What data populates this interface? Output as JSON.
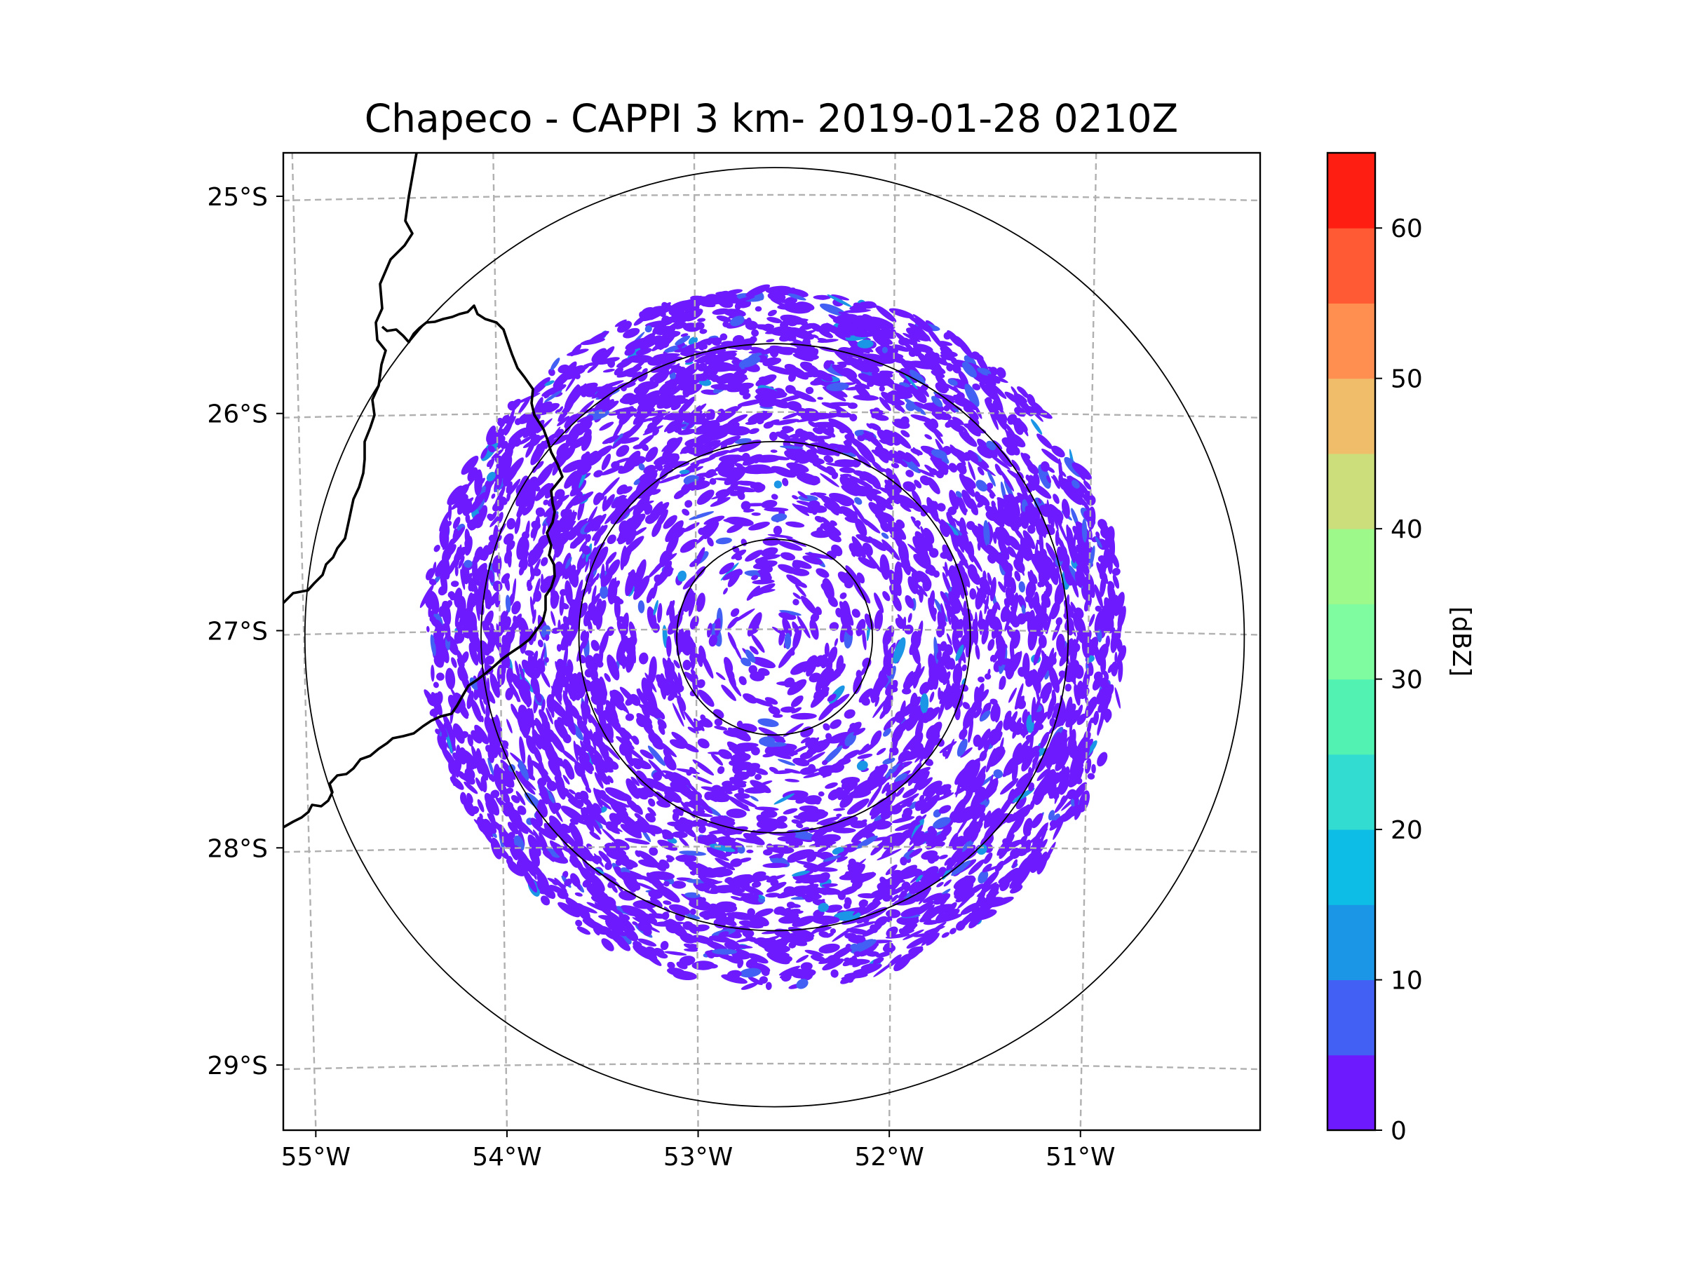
{
  "chart_data": {
    "type": "heatmap",
    "title": "Chapeco - CAPPI 3 km- 2019-01-28 0210Z",
    "projection": "map (lon/lat)",
    "xlim": [
      -55.17,
      -50.06
    ],
    "ylim": [
      -29.3,
      -24.8
    ],
    "xticks": [
      -55,
      -54,
      -53,
      -52,
      -51
    ],
    "xtick_labels": [
      "55°W",
      "54°W",
      "53°W",
      "52°W",
      "51°W"
    ],
    "yticks": [
      -25,
      -26,
      -27,
      -28,
      -29
    ],
    "ytick_labels": [
      "25°S",
      "26°S",
      "27°S",
      "28°S",
      "29°S"
    ],
    "grid": true,
    "radar": {
      "name": "Chapeco",
      "center_lon": -52.6,
      "center_lat": -27.03,
      "range_rings_km": [
        50,
        100,
        150,
        240
      ],
      "data_max_range_km": 180
    },
    "colorbar": {
      "label": "[dBZ]",
      "levels": [
        0,
        5,
        10,
        15,
        20,
        25,
        30,
        35,
        40,
        45,
        50,
        55,
        60,
        65
      ],
      "colors": [
        "#6d1afe",
        "#4261f4",
        "#1b95e5",
        "#0dbde6",
        "#32dcd0",
        "#52f2b2",
        "#80fca0",
        "#9cf98a",
        "#ccdd7b",
        "#f0bd6b",
        "#fe8f50",
        "#ff5a33",
        "#ff1f12"
      ],
      "ticks": [
        0,
        10,
        20,
        30,
        40,
        50,
        60
      ],
      "tick_labels": [
        "0",
        "10",
        "20",
        "30",
        "40",
        "50",
        "60"
      ]
    },
    "observed_reflectivity": "mostly 0–5 dBZ (clear-air echoes) with scattered 5–20 dBZ spots",
    "boundaries": "state/country borders on western side"
  }
}
